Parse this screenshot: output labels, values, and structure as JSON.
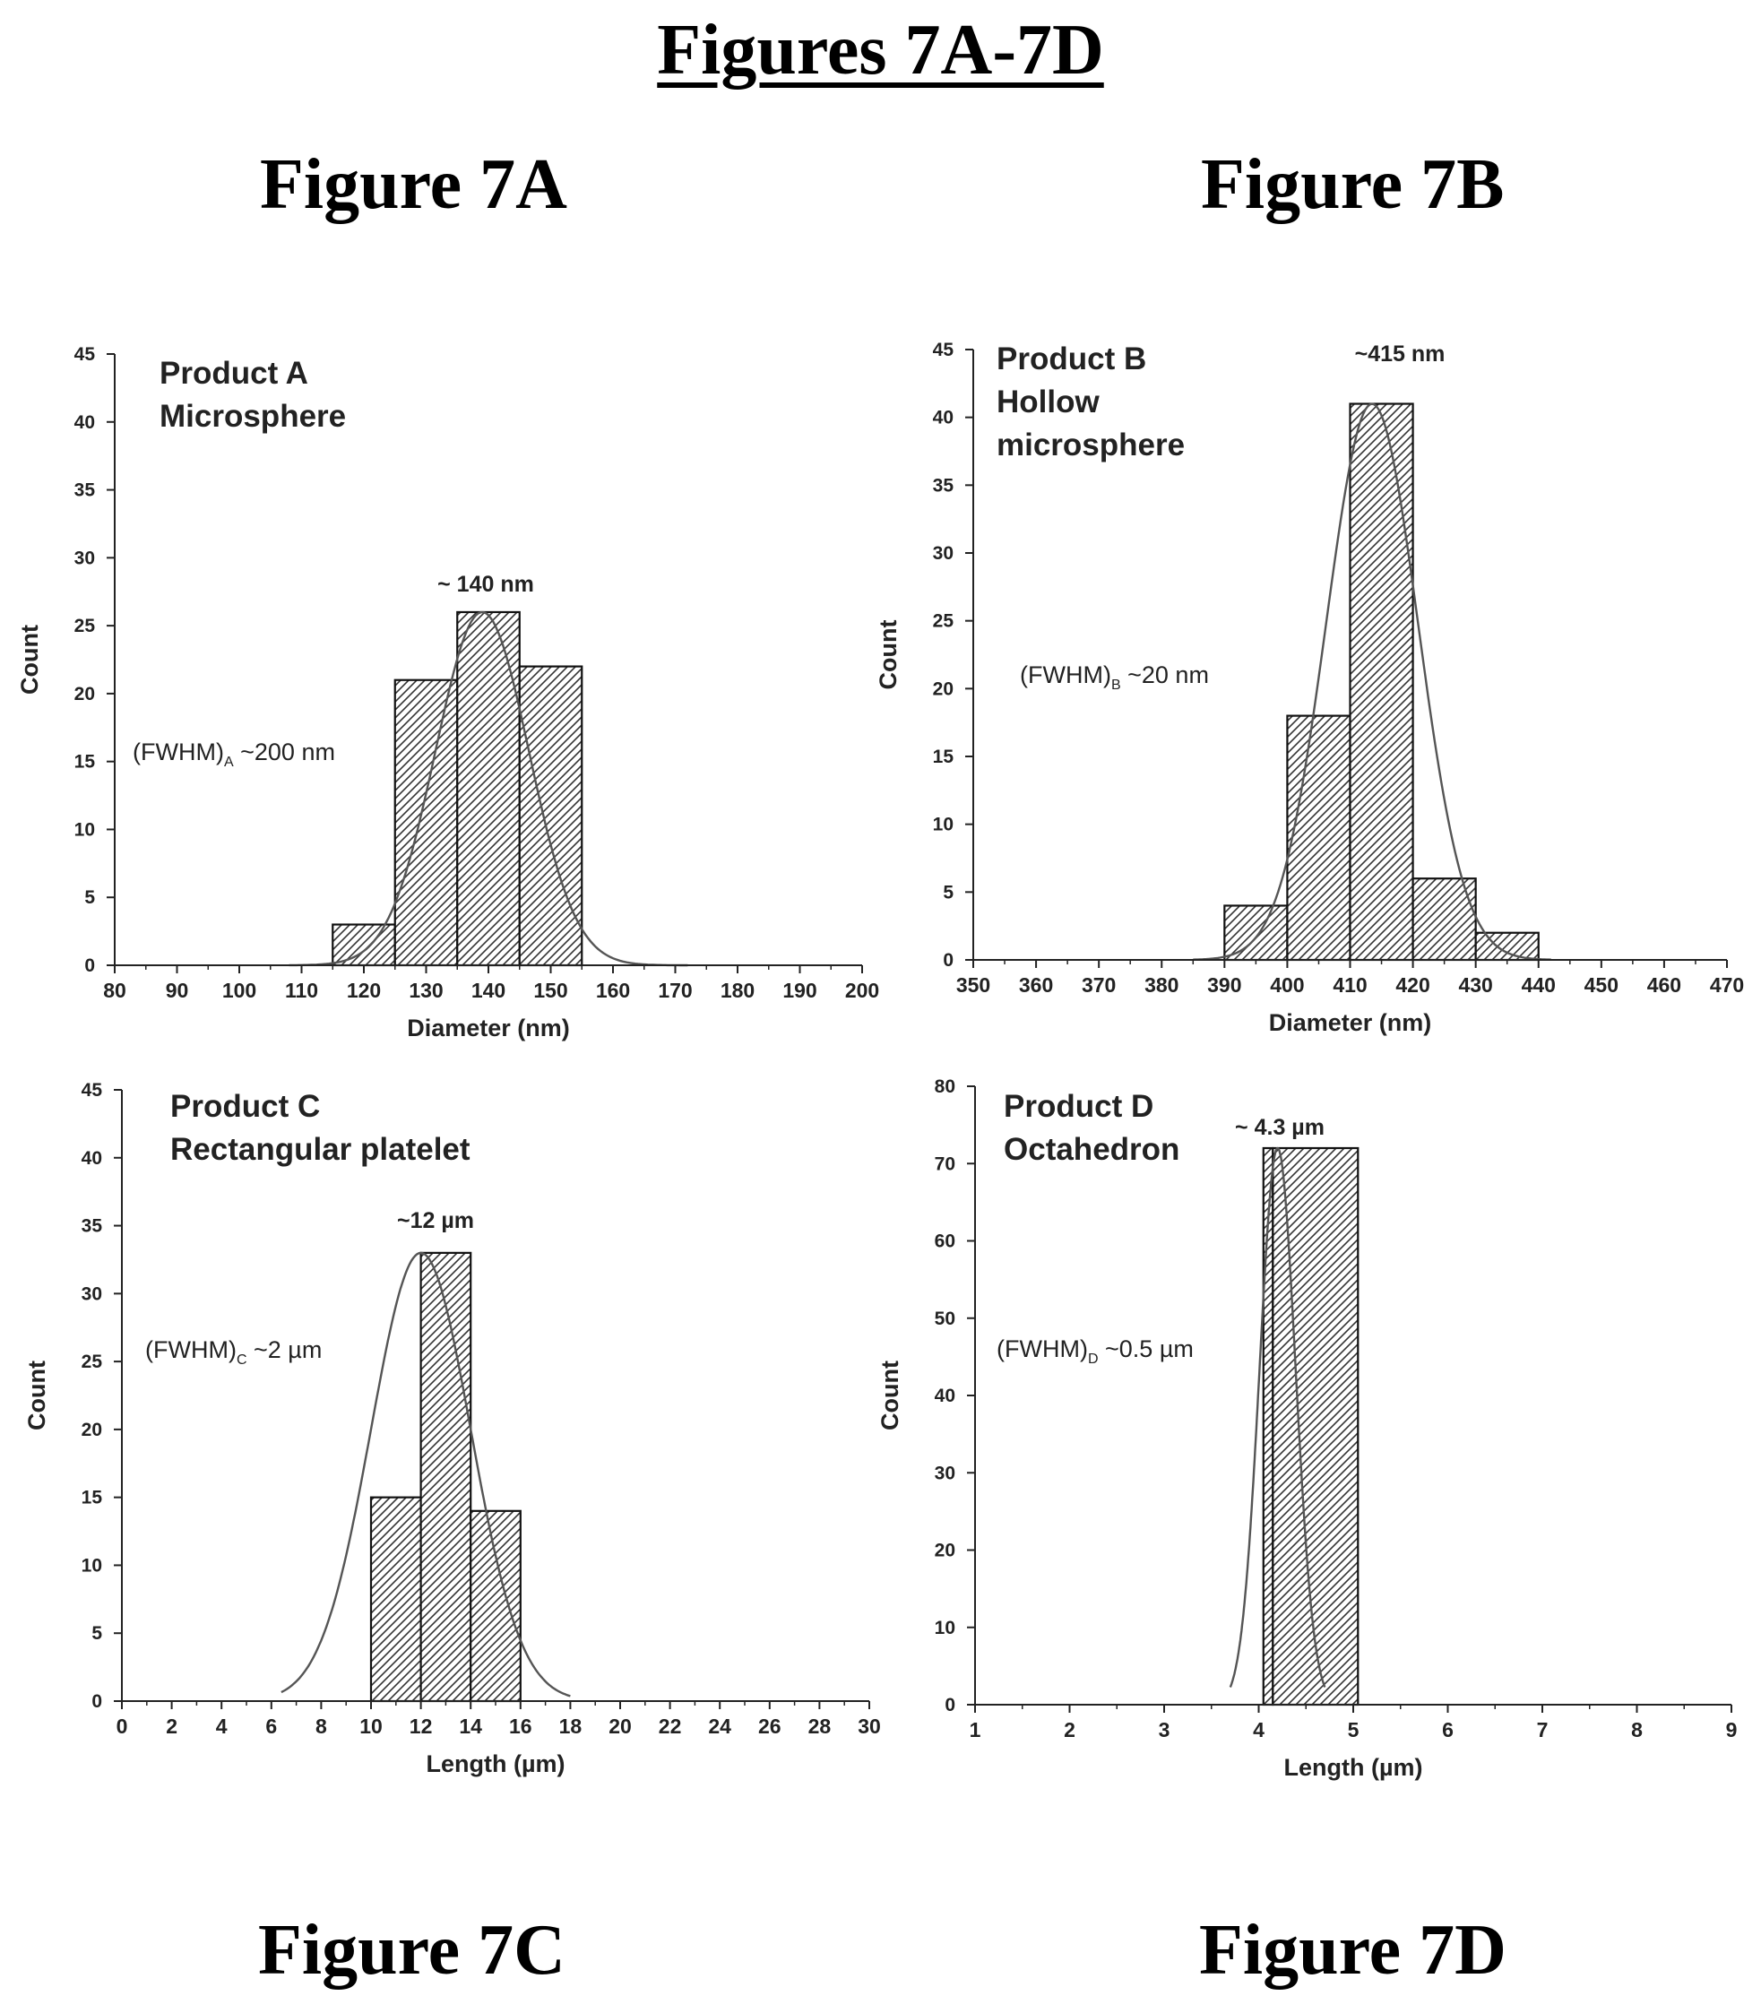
{
  "title": "Figures 7A-7D",
  "captions": [
    "Figure 7A",
    "Figure 7B",
    "Figure 7C",
    "Figure 7D"
  ],
  "colors": {
    "bar_stroke": "#111111",
    "hatch": "#333333",
    "curve": "#555555",
    "axis": "#222222"
  },
  "chart_data": [
    {
      "type": "bar",
      "id": "7A",
      "annotations": [
        "Product A",
        "Microsphere"
      ],
      "peak_label": "~ 140 nm",
      "fwhm": {
        "main": "(FWHM)",
        "sub": "A",
        "value": " ~200 nm"
      },
      "xlabel": "Diameter (nm)",
      "ylabel": "Count",
      "xlim": [
        80,
        200
      ],
      "xstep": 10,
      "ylim": [
        0,
        45
      ],
      "ystep": 5,
      "bins": [
        {
          "x0": 115,
          "x1": 125,
          "count": 3
        },
        {
          "x0": 125,
          "x1": 135,
          "count": 21
        },
        {
          "x0": 135,
          "x1": 145,
          "count": 26
        },
        {
          "x0": 145,
          "x1": 155,
          "count": 22
        }
      ],
      "fit": {
        "center": 139,
        "sigma": 7.5,
        "amplitude": 26,
        "range": [
          108,
          172
        ]
      }
    },
    {
      "type": "bar",
      "id": "7B",
      "annotations": [
        "Product B",
        "Hollow",
        "microsphere"
      ],
      "peak_label": "~415 nm",
      "fwhm": {
        "main": "(FWHM)",
        "sub": "B",
        "value": " ~20 nm"
      },
      "xlabel": "Diameter (nm)",
      "ylabel": "Count",
      "xlim": [
        350,
        470
      ],
      "xstep": 10,
      "ylim": [
        0,
        45
      ],
      "ystep": 5,
      "bins": [
        {
          "x0": 390,
          "x1": 400,
          "count": 4
        },
        {
          "x0": 400,
          "x1": 410,
          "count": 18
        },
        {
          "x0": 410,
          "x1": 420,
          "count": 41
        },
        {
          "x0": 420,
          "x1": 430,
          "count": 6
        },
        {
          "x0": 430,
          "x1": 440,
          "count": 2
        }
      ],
      "fit": {
        "center": 413.5,
        "sigma": 7.3,
        "amplitude": 41,
        "range": [
          385,
          442
        ]
      }
    },
    {
      "type": "bar",
      "id": "7C",
      "annotations": [
        "Product C",
        "Rectangular platelet"
      ],
      "peak_label": "~12 µm",
      "fwhm": {
        "main": "(FWHM)",
        "sub": "C",
        "value": " ~2 µm"
      },
      "xlabel": "Length (µm)",
      "ylabel": "Count",
      "xlim": [
        0,
        30
      ],
      "xstep": 2,
      "ylim": [
        0,
        45
      ],
      "ystep": 5,
      "bins": [
        {
          "x0": 10,
          "x1": 12,
          "count": 15
        },
        {
          "x0": 12,
          "x1": 14,
          "count": 33
        },
        {
          "x0": 14,
          "x1": 16,
          "count": 14
        }
      ],
      "fit": {
        "center": 12,
        "sigma": 2.0,
        "amplitude": 33,
        "range": [
          6.4,
          18
        ]
      }
    },
    {
      "type": "bar",
      "id": "7D",
      "annotations": [
        "Product D",
        "Octahedron"
      ],
      "peak_label": "~ 4.3 µm",
      "fwhm": {
        "main": "(FWHM)",
        "sub": "D",
        "value": " ~0.5 µm"
      },
      "xlabel": "Length (µm)",
      "ylabel": "Count",
      "xlim": [
        1,
        9
      ],
      "xstep": 1,
      "ylim": [
        0,
        80
      ],
      "ystep": 10,
      "bins": [
        {
          "x0": 4.05,
          "x1": 4.15,
          "count": 72
        },
        {
          "x0": 4.15,
          "x1": 5.05,
          "count": 72
        }
      ],
      "fit": {
        "center": 4.2,
        "sigma": 0.19,
        "amplitude": 72,
        "range": [
          3.7,
          4.7
        ]
      }
    }
  ]
}
